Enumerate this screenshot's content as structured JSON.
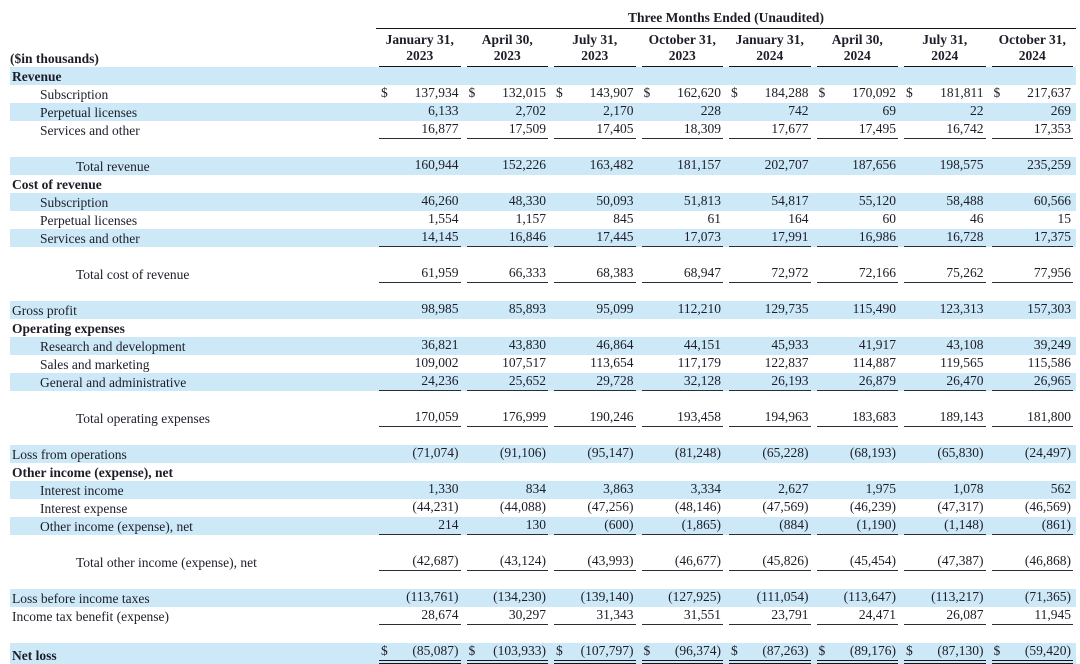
{
  "colors": {
    "stripe_blue": "#cde9f8",
    "rule_dark": "#15151c",
    "text": "#1d1d27",
    "background": "#ffffff"
  },
  "table": {
    "title": "Three Months Ended (Unaudited)",
    "units_label": "($in thousands)",
    "columns": [
      {
        "month": "January 31,",
        "year": "2023"
      },
      {
        "month": "April 30,",
        "year": "2023"
      },
      {
        "month": "July 31,",
        "year": "2023"
      },
      {
        "month": "October 31,",
        "year": "2023"
      },
      {
        "month": "January 31,",
        "year": "2024"
      },
      {
        "month": "April 30,",
        "year": "2024"
      },
      {
        "month": "July 31,",
        "year": "2024"
      },
      {
        "month": "October 31,",
        "year": "2024"
      }
    ],
    "rows": [
      {
        "label": "Revenue",
        "style": "section",
        "stripe": true,
        "values": null
      },
      {
        "label": "Subscription",
        "style": "item",
        "stripe": false,
        "dollar": true,
        "values": [
          "137,934",
          "132,015",
          "143,907",
          "162,620",
          "184,288",
          "170,092",
          "181,811",
          "217,637"
        ]
      },
      {
        "label": "Perpetual licenses",
        "style": "item",
        "stripe": true,
        "values": [
          "6,133",
          "2,702",
          "2,170",
          "228",
          "742",
          "69",
          "22",
          "269"
        ]
      },
      {
        "label": "Services and other",
        "style": "item",
        "stripe": false,
        "underline": "single",
        "values": [
          "16,877",
          "17,509",
          "17,405",
          "18,309",
          "17,677",
          "17,495",
          "16,742",
          "17,353"
        ]
      },
      {
        "blank": true
      },
      {
        "label": "Total revenue",
        "style": "total",
        "stripe": true,
        "values": [
          "160,944",
          "152,226",
          "163,482",
          "181,157",
          "202,707",
          "187,656",
          "198,575",
          "235,259"
        ]
      },
      {
        "label": "Cost of revenue",
        "style": "section",
        "stripe": false,
        "values": null
      },
      {
        "label": "Subscription",
        "style": "item",
        "stripe": true,
        "values": [
          "46,260",
          "48,330",
          "50,093",
          "51,813",
          "54,817",
          "55,120",
          "58,488",
          "60,566"
        ]
      },
      {
        "label": "Perpetual licenses",
        "style": "item",
        "stripe": false,
        "values": [
          "1,554",
          "1,157",
          "845",
          "61",
          "164",
          "60",
          "46",
          "15"
        ]
      },
      {
        "label": "Services and other",
        "style": "item",
        "stripe": true,
        "underline": "single",
        "values": [
          "14,145",
          "16,846",
          "17,445",
          "17,073",
          "17,991",
          "16,986",
          "16,728",
          "17,375"
        ]
      },
      {
        "blank": true
      },
      {
        "label": "Total cost of revenue",
        "style": "total",
        "stripe": false,
        "underline": "single",
        "values": [
          "61,959",
          "66,333",
          "68,383",
          "68,947",
          "72,972",
          "72,166",
          "75,262",
          "77,956"
        ]
      },
      {
        "blank": true
      },
      {
        "label": "Gross profit",
        "style": "plain",
        "stripe": true,
        "values": [
          "98,985",
          "85,893",
          "95,099",
          "112,210",
          "129,735",
          "115,490",
          "123,313",
          "157,303"
        ]
      },
      {
        "label": "Operating expenses",
        "style": "section",
        "stripe": false,
        "values": null
      },
      {
        "label": "Research and development",
        "style": "item",
        "stripe": true,
        "values": [
          "36,821",
          "43,830",
          "46,864",
          "44,151",
          "45,933",
          "41,917",
          "43,108",
          "39,249"
        ]
      },
      {
        "label": "Sales and marketing",
        "style": "item",
        "stripe": false,
        "values": [
          "109,002",
          "107,517",
          "113,654",
          "117,179",
          "122,837",
          "114,887",
          "119,565",
          "115,586"
        ]
      },
      {
        "label": "General and administrative",
        "style": "item",
        "stripe": true,
        "underline": "single",
        "values": [
          "24,236",
          "25,652",
          "29,728",
          "32,128",
          "26,193",
          "26,879",
          "26,470",
          "26,965"
        ]
      },
      {
        "blank": true
      },
      {
        "label": "Total operating expenses",
        "style": "total",
        "stripe": false,
        "underline": "single",
        "values": [
          "170,059",
          "176,999",
          "190,246",
          "193,458",
          "194,963",
          "183,683",
          "189,143",
          "181,800"
        ]
      },
      {
        "blank": true
      },
      {
        "label": "Loss from operations",
        "style": "plain",
        "stripe": true,
        "values": [
          "(71,074)",
          "(91,106)",
          "(95,147)",
          "(81,248)",
          "(65,228)",
          "(68,193)",
          "(65,830)",
          "(24,497)"
        ]
      },
      {
        "label": "Other income (expense), net",
        "style": "section",
        "stripe": false,
        "values": null
      },
      {
        "label": "Interest income",
        "style": "item",
        "stripe": true,
        "values": [
          "1,330",
          "834",
          "3,863",
          "3,334",
          "2,627",
          "1,975",
          "1,078",
          "562"
        ]
      },
      {
        "label": "Interest expense",
        "style": "item",
        "stripe": false,
        "values": [
          "(44,231)",
          "(44,088)",
          "(47,256)",
          "(48,146)",
          "(47,569)",
          "(46,239)",
          "(47,317)",
          "(46,569)"
        ]
      },
      {
        "label": "Other income (expense), net",
        "style": "item",
        "stripe": true,
        "underline": "single",
        "values": [
          "214",
          "130",
          "(600)",
          "(1,865)",
          "(884)",
          "(1,190)",
          "(1,148)",
          "(861)"
        ]
      },
      {
        "blank": true
      },
      {
        "label": "Total other income (expense), net",
        "style": "total",
        "stripe": false,
        "underline": "single",
        "values": [
          "(42,687)",
          "(43,124)",
          "(43,993)",
          "(46,677)",
          "(45,826)",
          "(45,454)",
          "(47,387)",
          "(46,868)"
        ]
      },
      {
        "blank": true
      },
      {
        "label": "Loss before income taxes",
        "style": "plain",
        "stripe": true,
        "values": [
          "(113,761)",
          "(134,230)",
          "(139,140)",
          "(127,925)",
          "(111,054)",
          "(113,647)",
          "(113,217)",
          "(71,365)"
        ]
      },
      {
        "label": "Income tax benefit (expense)",
        "style": "plain",
        "stripe": false,
        "underline": "single",
        "values": [
          "28,674",
          "30,297",
          "31,343",
          "31,551",
          "23,791",
          "24,471",
          "26,087",
          "11,945"
        ]
      },
      {
        "blank": true
      },
      {
        "label": "Net loss",
        "style": "section",
        "stripe": true,
        "dollar": true,
        "underline": "double",
        "values": [
          "(85,087)",
          "(103,933)",
          "(107,797)",
          "(96,374)",
          "(87,263)",
          "(89,176)",
          "(87,130)",
          "(59,420)"
        ]
      }
    ]
  }
}
